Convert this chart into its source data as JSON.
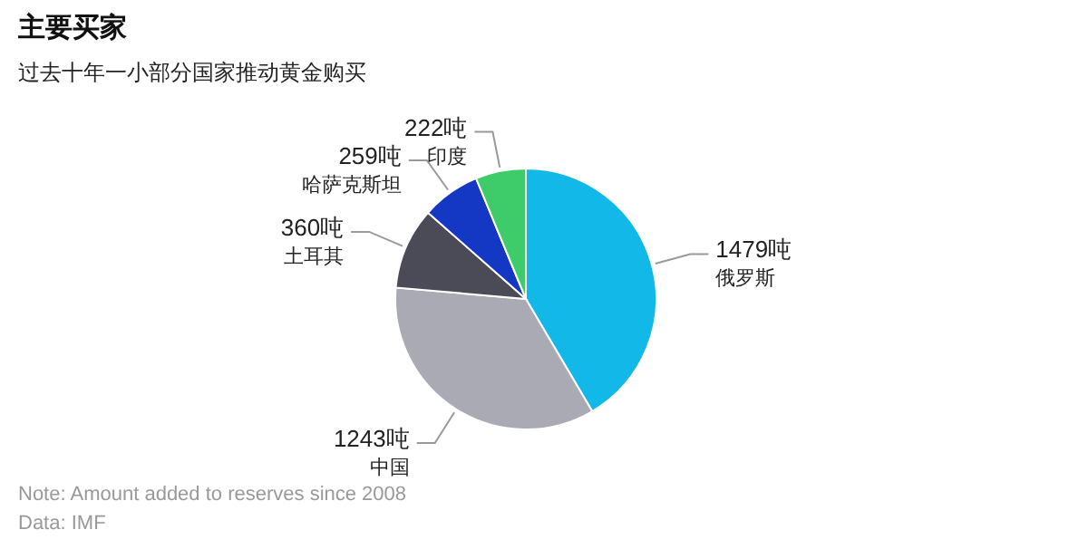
{
  "chart_data": {
    "type": "pie",
    "title": "主要买家",
    "subtitle": "过去十年一小部分国家推动黄金购买",
    "categories": [
      "俄罗斯",
      "中国",
      "土耳其",
      "哈萨克斯坦",
      "印度"
    ],
    "values": [
      1479,
      1243,
      360,
      259,
      222
    ],
    "value_labels": [
      "1479吨",
      "1243吨",
      "360吨",
      "259吨",
      "222吨"
    ],
    "colors": [
      "#12b9e8",
      "#a9aab3",
      "#4b4b58",
      "#1538c4",
      "#3ecb6a"
    ],
    "annotations": [
      "Note: Amount added to reserves since 2008",
      "Data: IMF"
    ]
  }
}
